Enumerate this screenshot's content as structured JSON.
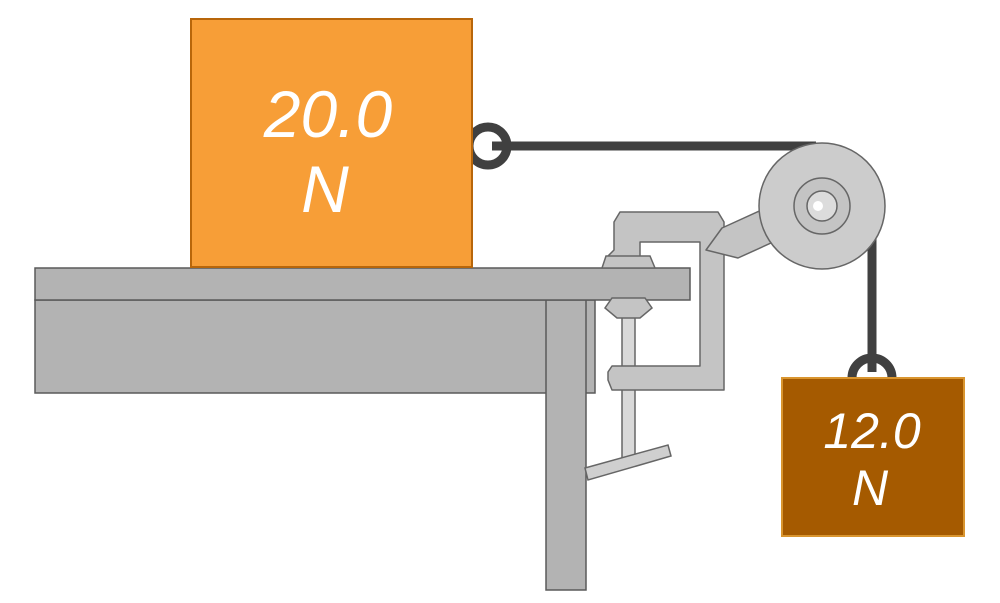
{
  "blocks": {
    "table_block": {
      "line1": "20.0",
      "line2": "N",
      "color": "#f79e37",
      "border": "#b8660a"
    },
    "hanging_block": {
      "line1": "12.0",
      "line2": "N",
      "color": "#a55a00",
      "border": "#d9952f"
    }
  },
  "colors": {
    "table": "#b3b3b3",
    "table_edge": "#5a5a5a",
    "clamp": "#c4c4c4",
    "clamp_edge": "#666666",
    "rope": "#404040",
    "pulley": "#cccccc"
  }
}
